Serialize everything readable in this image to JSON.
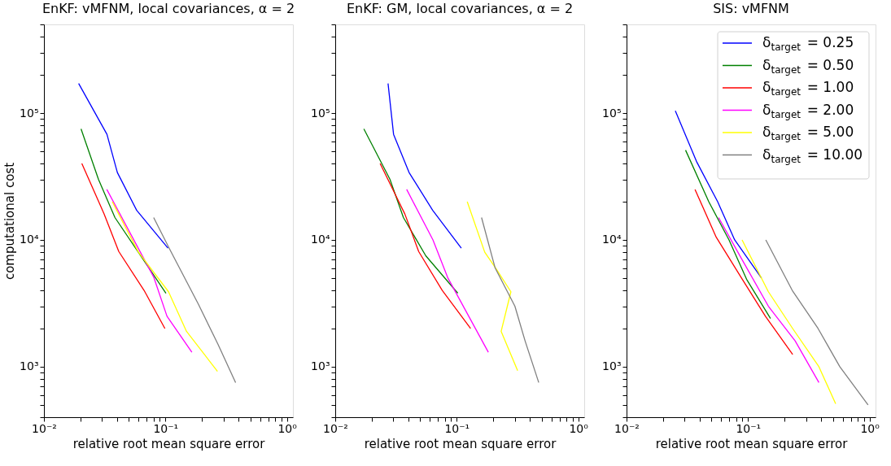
{
  "chart_data": [
    {
      "type": "line",
      "title": "EnKF: vMFNM, local covariances, α = 2",
      "xlabel": "relative root mean square error",
      "ylabel": "computational cost",
      "log": "xy",
      "grid": false,
      "xlim": [
        0.01,
        1.12
      ],
      "ylim": [
        400,
        500000
      ],
      "xticks": [
        {
          "value": 0.01,
          "label": "10⁻²"
        },
        {
          "value": 0.02,
          "label": null
        },
        {
          "value": 0.03,
          "label": null
        },
        {
          "value": 0.04,
          "label": null
        },
        {
          "value": 0.05,
          "label": null
        },
        {
          "value": 0.06,
          "label": null
        },
        {
          "value": 0.07,
          "label": null
        },
        {
          "value": 0.08,
          "label": null
        },
        {
          "value": 0.09,
          "label": null
        },
        {
          "value": 0.1,
          "label": "10⁻¹"
        },
        {
          "value": 0.2,
          "label": null
        },
        {
          "value": 0.3,
          "label": null
        },
        {
          "value": 0.4,
          "label": null
        },
        {
          "value": 0.5,
          "label": null
        },
        {
          "value": 0.6,
          "label": null
        },
        {
          "value": 0.7,
          "label": null
        },
        {
          "value": 0.8,
          "label": null
        },
        {
          "value": 0.9,
          "label": null
        },
        {
          "value": 1,
          "label": "10⁰"
        }
      ],
      "yticks": [
        {
          "value": 400,
          "label": null
        },
        {
          "value": 500,
          "label": null
        },
        {
          "value": 600,
          "label": null
        },
        {
          "value": 700,
          "label": null
        },
        {
          "value": 800,
          "label": null
        },
        {
          "value": 900,
          "label": null
        },
        {
          "value": 1000,
          "label": "10³"
        },
        {
          "value": 2000,
          "label": null
        },
        {
          "value": 3000,
          "label": null
        },
        {
          "value": 4000,
          "label": null
        },
        {
          "value": 5000,
          "label": null
        },
        {
          "value": 6000,
          "label": null
        },
        {
          "value": 7000,
          "label": null
        },
        {
          "value": 8000,
          "label": null
        },
        {
          "value": 9000,
          "label": null
        },
        {
          "value": 10000,
          "label": "10⁴"
        },
        {
          "value": 20000,
          "label": null
        },
        {
          "value": 30000,
          "label": null
        },
        {
          "value": 40000,
          "label": null
        },
        {
          "value": 50000,
          "label": null
        },
        {
          "value": 60000,
          "label": null
        },
        {
          "value": 70000,
          "label": null
        },
        {
          "value": 80000,
          "label": null
        },
        {
          "value": 90000,
          "label": null
        },
        {
          "value": 100000,
          "label": "10⁵"
        },
        {
          "value": 200000,
          "label": null
        },
        {
          "value": 300000,
          "label": null
        },
        {
          "value": 400000,
          "label": null
        },
        {
          "value": 500000,
          "label": null
        }
      ],
      "series": [
        {
          "color": "#0000ff",
          "x": [
            0.0193,
            0.033,
            0.0402,
            0.058,
            0.105
          ],
          "values": [
            171000,
            68000,
            34000,
            17100,
            8600
          ]
        },
        {
          "color": "#008000",
          "x": [
            0.0202,
            0.0281,
            0.0384,
            0.101
          ],
          "values": [
            75000,
            30000,
            15000,
            3800
          ]
        },
        {
          "color": "#ff0000",
          "x": [
            0.0205,
            0.0313,
            0.0413,
            0.0667,
            0.099
          ],
          "values": [
            40000,
            16000,
            8100,
            4000,
            2000
          ]
        },
        {
          "color": "#ff00ff",
          "x": [
            0.0329,
            0.08,
            0.103,
            0.165
          ],
          "values": [
            25000,
            5100,
            2500,
            1300
          ]
        },
        {
          "color": "#ffff00",
          "x": [
            0.0365,
            0.06,
            0.106,
            0.149,
            0.268
          ],
          "values": [
            20000,
            8000,
            3900,
            1900,
            920
          ]
        },
        {
          "color": "#808080",
          "x": [
            0.08,
            0.108,
            0.187,
            0.271,
            0.378
          ],
          "values": [
            15000,
            8500,
            3100,
            1500,
            750
          ]
        }
      ]
    },
    {
      "type": "line",
      "title": "EnKF: GM, local covariances, α = 2",
      "xlabel": "relative root mean square error",
      "log": "xy",
      "grid": false,
      "xlim": [
        0.01,
        1.12
      ],
      "ylim": [
        400,
        500000
      ],
      "xticks": [
        {
          "value": 0.01,
          "label": "10⁻²"
        },
        {
          "value": 0.02,
          "label": null
        },
        {
          "value": 0.03,
          "label": null
        },
        {
          "value": 0.04,
          "label": null
        },
        {
          "value": 0.05,
          "label": null
        },
        {
          "value": 0.06,
          "label": null
        },
        {
          "value": 0.07,
          "label": null
        },
        {
          "value": 0.08,
          "label": null
        },
        {
          "value": 0.09,
          "label": null
        },
        {
          "value": 0.1,
          "label": "10⁻¹"
        },
        {
          "value": 0.2,
          "label": null
        },
        {
          "value": 0.3,
          "label": null
        },
        {
          "value": 0.4,
          "label": null
        },
        {
          "value": 0.5,
          "label": null
        },
        {
          "value": 0.6,
          "label": null
        },
        {
          "value": 0.7,
          "label": null
        },
        {
          "value": 0.8,
          "label": null
        },
        {
          "value": 0.9,
          "label": null
        },
        {
          "value": 1,
          "label": "10⁰"
        }
      ],
      "yticks": [
        {
          "value": 400,
          "label": null
        },
        {
          "value": 500,
          "label": null
        },
        {
          "value": 600,
          "label": null
        },
        {
          "value": 700,
          "label": null
        },
        {
          "value": 800,
          "label": null
        },
        {
          "value": 900,
          "label": null
        },
        {
          "value": 1000,
          "label": "10³"
        },
        {
          "value": 2000,
          "label": null
        },
        {
          "value": 3000,
          "label": null
        },
        {
          "value": 4000,
          "label": null
        },
        {
          "value": 5000,
          "label": null
        },
        {
          "value": 6000,
          "label": null
        },
        {
          "value": 7000,
          "label": null
        },
        {
          "value": 8000,
          "label": null
        },
        {
          "value": 9000,
          "label": null
        },
        {
          "value": 10000,
          "label": "10⁴"
        },
        {
          "value": 20000,
          "label": null
        },
        {
          "value": 30000,
          "label": null
        },
        {
          "value": 40000,
          "label": null
        },
        {
          "value": 50000,
          "label": null
        },
        {
          "value": 60000,
          "label": null
        },
        {
          "value": 70000,
          "label": null
        },
        {
          "value": 80000,
          "label": null
        },
        {
          "value": 90000,
          "label": null
        },
        {
          "value": 100000,
          "label": "10⁵"
        },
        {
          "value": 200000,
          "label": null
        },
        {
          "value": 300000,
          "label": null
        },
        {
          "value": 400000,
          "label": null
        },
        {
          "value": 500000,
          "label": null
        }
      ],
      "series": [
        {
          "color": "#0000ff",
          "x": [
            0.0272,
            0.0302,
            0.0405,
            0.0634,
            0.109
          ],
          "values": [
            171000,
            68000,
            34000,
            17100,
            8600
          ]
        },
        {
          "color": "#008000",
          "x": [
            0.0172,
            0.0282,
            0.0364,
            0.0556,
            0.102
          ],
          "values": [
            75000,
            30000,
            15000,
            7500,
            3800
          ]
        },
        {
          "color": "#ff0000",
          "x": [
            0.0234,
            0.0374,
            0.0486,
            0.076,
            0.13
          ],
          "values": [
            40000,
            16000,
            8100,
            4000,
            2000
          ]
        },
        {
          "color": "#ff00ff",
          "x": [
            0.0387,
            0.0637,
            0.0846,
            0.182
          ],
          "values": [
            25000,
            10000,
            5000,
            1300
          ]
        },
        {
          "color": "#ffff00",
          "x": [
            0.122,
            0.17,
            0.209,
            0.279,
            0.232,
            0.317
          ],
          "values": [
            20000,
            8000,
            6000,
            3900,
            1900,
            930
          ]
        },
        {
          "color": "#808080",
          "x": [
            0.16,
            0.207,
            0.301,
            0.365,
            0.473
          ],
          "values": [
            15000,
            6000,
            3000,
            1600,
            750
          ]
        }
      ]
    },
    {
      "type": "line",
      "title": "SIS: vMFNM",
      "xlabel": "relative root mean square error",
      "log": "xy",
      "grid": false,
      "legend": "top right",
      "xlim": [
        0.01,
        1.12
      ],
      "ylim": [
        400,
        500000
      ],
      "xticks": [
        {
          "value": 0.01,
          "label": "10⁻²"
        },
        {
          "value": 0.02,
          "label": null
        },
        {
          "value": 0.03,
          "label": null
        },
        {
          "value": 0.04,
          "label": null
        },
        {
          "value": 0.05,
          "label": null
        },
        {
          "value": 0.06,
          "label": null
        },
        {
          "value": 0.07,
          "label": null
        },
        {
          "value": 0.08,
          "label": null
        },
        {
          "value": 0.09,
          "label": null
        },
        {
          "value": 0.1,
          "label": "10⁻¹"
        },
        {
          "value": 0.2,
          "label": null
        },
        {
          "value": 0.3,
          "label": null
        },
        {
          "value": 0.4,
          "label": null
        },
        {
          "value": 0.5,
          "label": null
        },
        {
          "value": 0.6,
          "label": null
        },
        {
          "value": 0.7,
          "label": null
        },
        {
          "value": 0.8,
          "label": null
        },
        {
          "value": 0.9,
          "label": null
        },
        {
          "value": 1,
          "label": "10⁰"
        }
      ],
      "yticks": [
        {
          "value": 400,
          "label": null
        },
        {
          "value": 500,
          "label": null
        },
        {
          "value": 600,
          "label": null
        },
        {
          "value": 700,
          "label": null
        },
        {
          "value": 800,
          "label": null
        },
        {
          "value": 900,
          "label": null
        },
        {
          "value": 1000,
          "label": "10³"
        },
        {
          "value": 2000,
          "label": null
        },
        {
          "value": 3000,
          "label": null
        },
        {
          "value": 4000,
          "label": null
        },
        {
          "value": 5000,
          "label": null
        },
        {
          "value": 6000,
          "label": null
        },
        {
          "value": 7000,
          "label": null
        },
        {
          "value": 8000,
          "label": null
        },
        {
          "value": 9000,
          "label": null
        },
        {
          "value": 10000,
          "label": "10⁴"
        },
        {
          "value": 20000,
          "label": null
        },
        {
          "value": 30000,
          "label": null
        },
        {
          "value": 40000,
          "label": null
        },
        {
          "value": 50000,
          "label": null
        },
        {
          "value": 60000,
          "label": null
        },
        {
          "value": 70000,
          "label": null
        },
        {
          "value": 80000,
          "label": null
        },
        {
          "value": 90000,
          "label": null
        },
        {
          "value": 100000,
          "label": "10⁵"
        },
        {
          "value": 200000,
          "label": null
        },
        {
          "value": 300000,
          "label": null
        },
        {
          "value": 400000,
          "label": null
        },
        {
          "value": 500000,
          "label": null
        }
      ],
      "series": [
        {
          "name": "δ$_{target}$ = 0.25",
          "color": "#0000ff",
          "x": [
            0.0252,
            0.0379,
            0.0562,
            0.0776,
            0.129
          ],
          "values": [
            104000,
            41000,
            20000,
            10000,
            5000
          ]
        },
        {
          "name": "δ$_{target}$ = 0.50",
          "color": "#008000",
          "x": [
            0.0306,
            0.0475,
            0.0697,
            0.0972,
            0.153
          ],
          "values": [
            51000,
            20000,
            10000,
            4900,
            2400
          ]
        },
        {
          "name": "δ$_{target}$ = 1.00",
          "color": "#ff0000",
          "x": [
            0.0366,
            0.0547,
            0.0873,
            0.139,
            0.233
          ],
          "values": [
            25000,
            10500,
            5100,
            2500,
            1250
          ]
        },
        {
          "name": "δ$_{target}$ = 2.00",
          "color": "#ff00ff",
          "x": [
            0.0572,
            0.0863,
            0.147,
            0.244,
            0.383
          ],
          "values": [
            15000,
            7400,
            3000,
            1600,
            750
          ]
        },
        {
          "name": "δ$_{target}$ = 5.00",
          "color": "#ffff00",
          "x": [
            0.0893,
            0.147,
            0.233,
            0.383,
            0.526
          ],
          "values": [
            10000,
            3900,
            2000,
            1000,
            510
          ]
        },
        {
          "name": "δ$_{target}$ = 10.00",
          "color": "#808080",
          "x": [
            0.14,
            0.231,
            0.377,
            0.569,
            0.972
          ],
          "values": [
            10000,
            4000,
            2000,
            1000,
            500
          ]
        }
      ]
    }
  ]
}
